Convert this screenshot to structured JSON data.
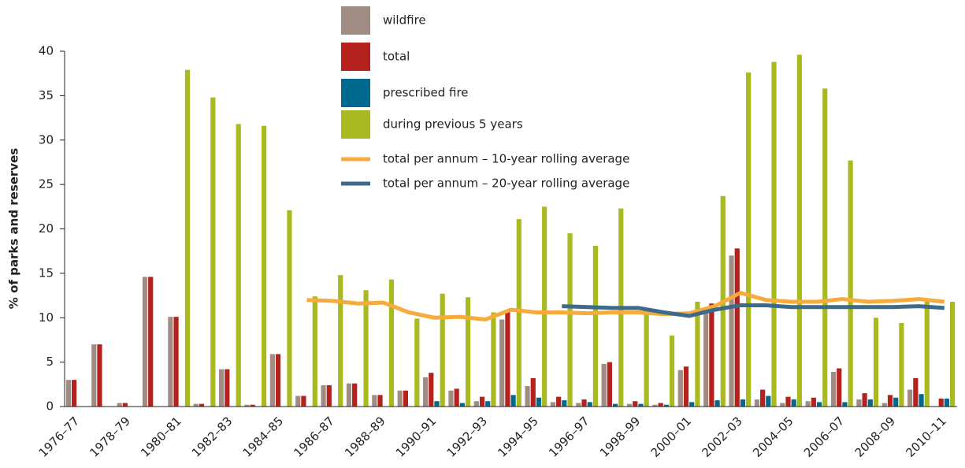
{
  "chart_data": {
    "type": "bar",
    "y_label": "% of parks and reserves",
    "categories": [
      "1976–77",
      null,
      "1978–79",
      null,
      "1980–81",
      null,
      "1982–83",
      null,
      "1984–85",
      null,
      "1986–87",
      null,
      "1988–89",
      null,
      "1990–91",
      null,
      "1992–93",
      null,
      "1994–95",
      null,
      "1996–97",
      null,
      "1998–99",
      null,
      "2000–01",
      null,
      "2002–03",
      null,
      "2004–05",
      null,
      "2006–07",
      null,
      "2008–09",
      null,
      "2010–11"
    ],
    "ylim": [
      0,
      40
    ],
    "yticks": [
      0,
      5,
      10,
      15,
      20,
      25,
      30,
      35,
      40
    ],
    "series": [
      {
        "name": "wildfire",
        "color": "#a08c82",
        "values": [
          3,
          7,
          0.4,
          14.6,
          10.1,
          0.3,
          4.2,
          0.2,
          5.9,
          1.2,
          2.4,
          2.6,
          1.3,
          1.8,
          3.3,
          1.8,
          0.6,
          9.8,
          2.3,
          0.5,
          0.4,
          4.8,
          0.3,
          0.2,
          4.1,
          10.5,
          17.0,
          0.8,
          0.4,
          0.6,
          3.9,
          0.8,
          0.4,
          1.9,
          0
        ]
      },
      {
        "name": "total",
        "color": "#b5211d",
        "values": [
          3,
          7,
          0.4,
          14.6,
          10.1,
          0.3,
          4.2,
          0.2,
          5.9,
          1.2,
          2.4,
          2.6,
          1.3,
          1.8,
          3.8,
          2.0,
          1.1,
          10.7,
          3.2,
          1.1,
          0.8,
          5.0,
          0.6,
          0.4,
          4.5,
          11.6,
          17.8,
          1.9,
          1.1,
          1.0,
          4.3,
          1.5,
          1.3,
          3.2,
          0.9
        ]
      },
      {
        "name": "prescribed fire",
        "color": "#006a8e",
        "values": [
          null,
          null,
          null,
          null,
          null,
          null,
          null,
          null,
          null,
          null,
          null,
          null,
          null,
          null,
          0.6,
          0.4,
          0.6,
          1.3,
          1.0,
          0.7,
          0.5,
          0.3,
          0.3,
          0.2,
          0.5,
          0.7,
          0.8,
          1.2,
          0.8,
          0.5,
          0.5,
          0.8,
          1.0,
          1.4,
          0.9
        ]
      },
      {
        "name": "during previous 5 years",
        "color": "#a9b920",
        "values": [
          null,
          null,
          null,
          null,
          37.9,
          34.8,
          31.8,
          31.6,
          22.1,
          12.4,
          14.8,
          13.1,
          14.3,
          9.9,
          12.7,
          12.3,
          10.6,
          21.1,
          22.5,
          19.5,
          18.1,
          22.3,
          10.8,
          8.0,
          11.8,
          23.7,
          37.6,
          38.8,
          39.6,
          35.8,
          27.7,
          10.0,
          9.4,
          11.8,
          11.8
        ]
      },
      {
        "name": "total per annum – 10-year rolling average",
        "type": "line",
        "color": "#f7ab3c",
        "values": [
          null,
          null,
          null,
          null,
          null,
          null,
          null,
          null,
          null,
          12.0,
          11.9,
          11.6,
          11.7,
          10.6,
          10.0,
          10.1,
          9.8,
          10.9,
          10.6,
          10.6,
          10.5,
          10.6,
          10.6,
          10.4,
          10.5,
          11.3,
          12.8,
          12.0,
          11.8,
          11.8,
          12.1,
          11.8,
          11.9,
          12.1,
          11.8
        ]
      },
      {
        "name": "total per annum – 20-year rolling average",
        "type": "line",
        "color": "#3d6a8a",
        "values": [
          null,
          null,
          null,
          null,
          null,
          null,
          null,
          null,
          null,
          null,
          null,
          null,
          null,
          null,
          null,
          null,
          null,
          null,
          null,
          11.3,
          11.2,
          11.1,
          11.1,
          10.6,
          10.2,
          10.9,
          11.4,
          11.4,
          11.2,
          11.2,
          11.2,
          11.2,
          11.2,
          11.3,
          11.1
        ]
      }
    ]
  }
}
